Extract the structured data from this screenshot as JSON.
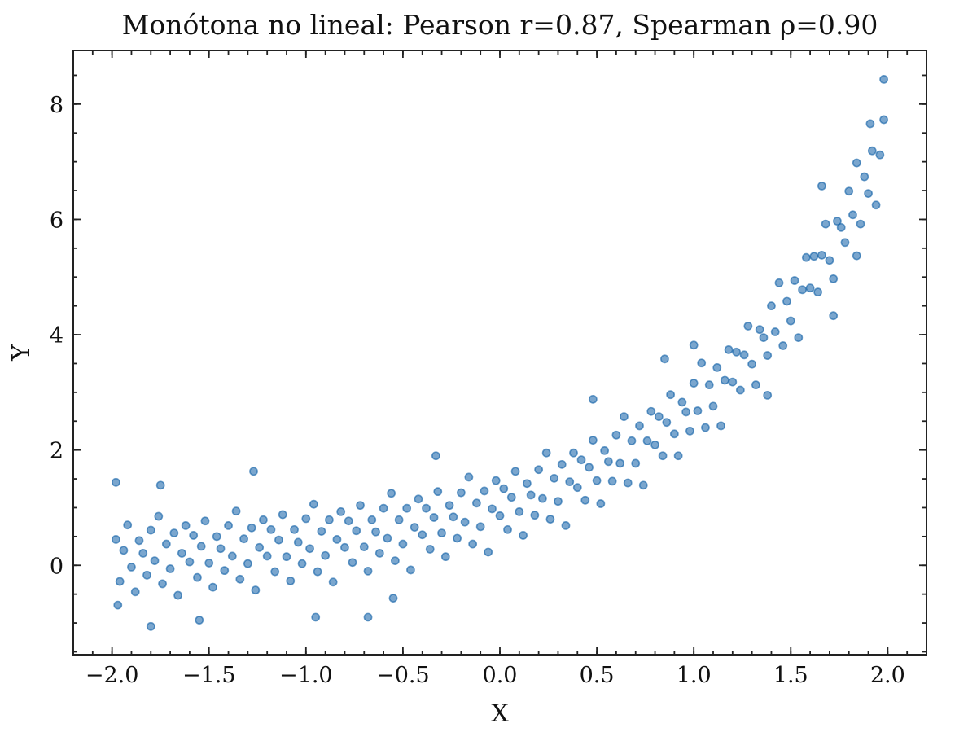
{
  "chart_data": {
    "type": "scatter",
    "title": "Monótona no lineal: Pearson r=0.87, Spearman ρ=0.90",
    "xlabel": "X",
    "ylabel": "Y",
    "xlim": [
      -2.2,
      2.2
    ],
    "ylim": [
      -1.55,
      8.93
    ],
    "xticks": [
      -2.0,
      -1.5,
      -1.0,
      -0.5,
      0.0,
      0.5,
      1.0,
      1.5,
      2.0
    ],
    "xtick_labels": [
      "−2.0",
      "−1.5",
      "−1.0",
      "−0.5",
      "0.0",
      "0.5",
      "1.0",
      "1.5",
      "2.0"
    ],
    "yticks": [
      0,
      2,
      4,
      6,
      8
    ],
    "ytick_labels": [
      "0",
      "2",
      "4",
      "6",
      "8"
    ],
    "x_minor_step": 0.1,
    "y_minor_step": 0.5,
    "grid": false,
    "marker_color": "#0C5DA5",
    "points": [
      [
        -1.98,
        0.45
      ],
      [
        -1.96,
        -0.28
      ],
      [
        -1.94,
        0.26
      ],
      [
        -1.92,
        0.7
      ],
      [
        -1.9,
        -0.03
      ],
      [
        -1.88,
        -0.46
      ],
      [
        -1.86,
        0.43
      ],
      [
        -1.84,
        0.21
      ],
      [
        -1.82,
        -0.17
      ],
      [
        -1.8,
        0.61
      ],
      [
        -1.78,
        0.08
      ],
      [
        -1.76,
        0.85
      ],
      [
        -1.74,
        -0.32
      ],
      [
        -1.72,
        0.37
      ],
      [
        -1.7,
        -0.06
      ],
      [
        -1.68,
        0.56
      ],
      [
        -1.66,
        -0.52
      ],
      [
        -1.64,
        0.21
      ],
      [
        -1.62,
        0.69
      ],
      [
        -1.6,
        0.06
      ],
      [
        -1.58,
        0.52
      ],
      [
        -1.56,
        -0.21
      ],
      [
        -1.54,
        0.33
      ],
      [
        -1.52,
        0.77
      ],
      [
        -1.5,
        0.04
      ],
      [
        -1.48,
        -0.38
      ],
      [
        -1.46,
        0.5
      ],
      [
        -1.44,
        0.29
      ],
      [
        -1.42,
        -0.09
      ],
      [
        -1.4,
        0.69
      ],
      [
        -1.38,
        0.16
      ],
      [
        -1.36,
        0.94
      ],
      [
        -1.34,
        -0.24
      ],
      [
        -1.32,
        0.46
      ],
      [
        -1.3,
        0.03
      ],
      [
        -1.28,
        0.65
      ],
      [
        -1.26,
        -0.43
      ],
      [
        -1.24,
        0.31
      ],
      [
        -1.22,
        0.79
      ],
      [
        -1.2,
        0.16
      ],
      [
        -1.18,
        0.62
      ],
      [
        -1.16,
        -0.11
      ],
      [
        -1.14,
        0.44
      ],
      [
        -1.12,
        0.88
      ],
      [
        -1.1,
        0.15
      ],
      [
        -1.08,
        -0.27
      ],
      [
        -1.06,
        0.62
      ],
      [
        -1.04,
        0.4
      ],
      [
        -1.02,
        0.03
      ],
      [
        -1.0,
        0.81
      ],
      [
        -0.98,
        0.29
      ],
      [
        -0.96,
        1.06
      ],
      [
        -0.94,
        -0.11
      ],
      [
        -0.92,
        0.59
      ],
      [
        -0.9,
        0.17
      ],
      [
        -0.88,
        0.79
      ],
      [
        -0.86,
        -0.29
      ],
      [
        -0.84,
        0.45
      ],
      [
        -0.82,
        0.93
      ],
      [
        -0.8,
        0.31
      ],
      [
        -0.78,
        0.77
      ],
      [
        -0.76,
        0.05
      ],
      [
        -0.74,
        0.6
      ],
      [
        -0.72,
        1.04
      ],
      [
        -0.7,
        0.32
      ],
      [
        -0.68,
        -0.1
      ],
      [
        -0.66,
        0.79
      ],
      [
        -0.64,
        0.58
      ],
      [
        -0.62,
        0.21
      ],
      [
        -0.6,
        0.99
      ],
      [
        -0.58,
        0.47
      ],
      [
        -0.56,
        1.25
      ],
      [
        -0.54,
        0.08
      ],
      [
        -0.52,
        0.79
      ],
      [
        -0.5,
        0.37
      ],
      [
        -0.48,
        0.99
      ],
      [
        -0.46,
        -0.08
      ],
      [
        -0.44,
        0.66
      ],
      [
        -0.42,
        1.15
      ],
      [
        -0.4,
        0.53
      ],
      [
        -0.38,
        0.99
      ],
      [
        -0.36,
        0.28
      ],
      [
        -0.34,
        0.83
      ],
      [
        -0.32,
        1.28
      ],
      [
        -0.3,
        0.56
      ],
      [
        -0.28,
        0.15
      ],
      [
        -0.26,
        1.04
      ],
      [
        -0.24,
        0.84
      ],
      [
        -0.22,
        0.47
      ],
      [
        -0.2,
        1.26
      ],
      [
        -0.18,
        0.75
      ],
      [
        -0.16,
        1.53
      ],
      [
        -0.14,
        0.37
      ],
      [
        -0.12,
        1.08
      ],
      [
        -0.1,
        0.67
      ],
      [
        -0.08,
        1.29
      ],
      [
        -0.06,
        0.23
      ],
      [
        -0.04,
        0.98
      ],
      [
        -0.02,
        1.47
      ],
      [
        0.0,
        0.86
      ],
      [
        0.02,
        1.33
      ],
      [
        0.04,
        0.62
      ],
      [
        0.06,
        1.18
      ],
      [
        0.08,
        1.63
      ],
      [
        0.1,
        0.93
      ],
      [
        0.12,
        0.52
      ],
      [
        0.14,
        1.42
      ],
      [
        0.16,
        1.22
      ],
      [
        0.18,
        0.87
      ],
      [
        0.2,
        1.66
      ],
      [
        0.22,
        1.16
      ],
      [
        0.24,
        1.95
      ],
      [
        0.26,
        0.8
      ],
      [
        0.28,
        1.51
      ],
      [
        0.3,
        1.11
      ],
      [
        0.32,
        1.75
      ],
      [
        0.34,
        0.69
      ],
      [
        0.36,
        1.45
      ],
      [
        0.38,
        1.95
      ],
      [
        0.4,
        1.35
      ],
      [
        0.42,
        1.83
      ],
      [
        0.44,
        1.13
      ],
      [
        0.46,
        1.7
      ],
      [
        0.48,
        2.17
      ],
      [
        0.5,
        1.47
      ],
      [
        0.52,
        1.07
      ],
      [
        0.54,
        1.99
      ],
      [
        0.56,
        1.8
      ],
      [
        0.58,
        1.46
      ],
      [
        0.6,
        2.26
      ],
      [
        0.62,
        1.77
      ],
      [
        0.64,
        2.58
      ],
      [
        0.66,
        1.43
      ],
      [
        0.68,
        2.16
      ],
      [
        0.7,
        1.77
      ],
      [
        0.72,
        2.42
      ],
      [
        0.74,
        1.39
      ],
      [
        0.76,
        2.16
      ],
      [
        0.78,
        2.67
      ],
      [
        0.8,
        2.09
      ],
      [
        0.82,
        2.58
      ],
      [
        0.84,
        1.9
      ],
      [
        0.86,
        2.48
      ],
      [
        0.88,
        2.96
      ],
      [
        0.9,
        2.28
      ],
      [
        0.92,
        1.9
      ],
      [
        0.94,
        2.83
      ],
      [
        0.96,
        2.66
      ],
      [
        0.98,
        2.33
      ],
      [
        1.0,
        3.16
      ],
      [
        1.02,
        2.68
      ],
      [
        1.04,
        3.51
      ],
      [
        1.06,
        2.39
      ],
      [
        1.08,
        3.13
      ],
      [
        1.1,
        2.76
      ],
      [
        1.12,
        3.43
      ],
      [
        1.14,
        2.42
      ],
      [
        1.16,
        3.21
      ],
      [
        1.18,
        3.74
      ],
      [
        1.2,
        3.18
      ],
      [
        1.22,
        3.7
      ],
      [
        1.24,
        3.04
      ],
      [
        1.26,
        3.65
      ],
      [
        1.28,
        4.15
      ],
      [
        1.3,
        3.49
      ],
      [
        1.32,
        3.13
      ],
      [
        1.34,
        4.09
      ],
      [
        1.36,
        3.95
      ],
      [
        1.38,
        3.64
      ],
      [
        1.4,
        4.5
      ],
      [
        1.42,
        4.05
      ],
      [
        1.44,
        4.9
      ],
      [
        1.46,
        3.81
      ],
      [
        1.48,
        4.58
      ],
      [
        1.5,
        4.24
      ],
      [
        1.52,
        4.94
      ],
      [
        1.54,
        3.95
      ],
      [
        1.56,
        4.78
      ],
      [
        1.58,
        5.34
      ],
      [
        1.6,
        4.81
      ],
      [
        1.62,
        5.36
      ],
      [
        1.64,
        4.74
      ],
      [
        1.66,
        5.38
      ],
      [
        1.68,
        5.92
      ],
      [
        1.7,
        5.29
      ],
      [
        1.72,
        4.97
      ],
      [
        1.74,
        5.97
      ],
      [
        1.76,
        5.86
      ],
      [
        1.78,
        5.6
      ],
      [
        1.8,
        6.49
      ],
      [
        1.82,
        6.08
      ],
      [
        1.84,
        6.98
      ],
      [
        1.86,
        5.92
      ],
      [
        1.88,
        6.74
      ],
      [
        1.9,
        6.45
      ],
      [
        1.92,
        7.19
      ],
      [
        1.94,
        6.25
      ],
      [
        1.96,
        7.12
      ],
      [
        1.98,
        7.73
      ],
      [
        1.98,
        8.43
      ],
      [
        -1.8,
        -1.06
      ],
      [
        -0.68,
        -0.9
      ],
      [
        -0.95,
        -0.9
      ],
      [
        -1.27,
        1.63
      ],
      [
        -0.33,
        1.9
      ],
      [
        0.48,
        2.88
      ],
      [
        0.85,
        3.58
      ],
      [
        1.0,
        3.82
      ],
      [
        1.38,
        2.95
      ],
      [
        1.72,
        4.33
      ],
      [
        1.84,
        5.37
      ],
      [
        -1.98,
        1.44
      ],
      [
        -1.75,
        1.39
      ],
      [
        -0.55,
        -0.57
      ],
      [
        1.66,
        6.58
      ],
      [
        1.91,
        7.66
      ],
      [
        -1.55,
        -0.95
      ],
      [
        -1.97,
        -0.69
      ]
    ]
  }
}
